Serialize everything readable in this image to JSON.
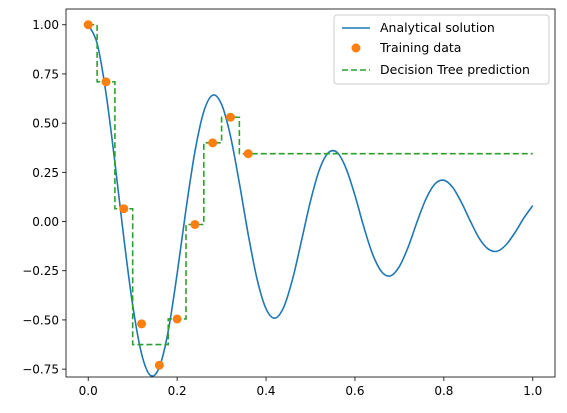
{
  "chart_data": {
    "type": "line",
    "xlim": [
      -0.05,
      1.05
    ],
    "ylim": [
      -0.79,
      1.08
    ],
    "x_ticks": [
      0.0,
      0.2,
      0.4,
      0.6,
      0.8,
      1.0
    ],
    "x_tick_labels": [
      "0.0",
      "0.2",
      "0.4",
      "0.6",
      "0.8",
      "1.0"
    ],
    "y_ticks": [
      -0.75,
      -0.5,
      -0.25,
      0.0,
      0.25,
      0.5,
      0.75,
      1.0
    ],
    "y_tick_labels": [
      "−0.75",
      "−0.50",
      "−0.25",
      "0.00",
      "0.25",
      "0.50",
      "0.75",
      "1.00"
    ],
    "grid": false,
    "legend_position": "top-right",
    "series": [
      {
        "name": "Analytical solution",
        "kind": "line",
        "style": "solid",
        "color": "#1f77b4",
        "x": [
          0.0,
          0.02,
          0.04,
          0.06,
          0.08,
          0.1,
          0.12,
          0.14,
          0.16,
          0.18,
          0.2,
          0.22,
          0.24,
          0.26,
          0.28,
          0.3,
          0.32,
          0.34,
          0.36,
          0.38,
          0.4,
          0.42,
          0.44,
          0.46,
          0.48,
          0.5,
          0.52,
          0.54,
          0.56,
          0.58,
          0.6,
          0.62,
          0.64,
          0.66,
          0.68,
          0.7,
          0.72,
          0.74,
          0.76,
          0.78,
          0.8,
          0.82,
          0.84,
          0.86,
          0.88,
          0.9,
          0.92,
          0.94,
          0.96,
          0.98,
          1.0
        ],
        "y": [
          1.0,
          0.905,
          0.652,
          0.3,
          -0.082,
          -0.425,
          -0.672,
          -0.782,
          -0.74,
          -0.556,
          -0.265,
          0.063,
          0.355,
          0.559,
          0.642,
          0.595,
          0.434,
          0.195,
          -0.067,
          -0.294,
          -0.443,
          -0.491,
          -0.434,
          -0.29,
          -0.095,
          0.104,
          0.263,
          0.349,
          0.351,
          0.27,
          0.133,
          -0.028,
          -0.168,
          -0.255,
          -0.276,
          -0.228,
          -0.128,
          0.0,
          0.116,
          0.191,
          0.21,
          0.173,
          0.095,
          0.0,
          -0.087,
          -0.14,
          -0.151,
          -0.118,
          -0.056,
          0.018,
          0.081
        ]
      },
      {
        "name": "Training data",
        "kind": "scatter",
        "color": "#ff7f0e",
        "x": [
          0.0,
          0.04,
          0.08,
          0.12,
          0.16,
          0.2,
          0.24,
          0.28,
          0.32,
          0.36
        ],
        "y": [
          1.0,
          0.71,
          0.065,
          -0.52,
          -0.73,
          -0.495,
          -0.015,
          0.4,
          0.53,
          0.345
        ]
      },
      {
        "name": "Decision Tree prediction",
        "kind": "step",
        "style": "dashed",
        "color": "#2ca02c",
        "x": [
          0.0,
          0.02,
          0.02,
          0.06,
          0.06,
          0.1,
          0.1,
          0.18,
          0.18,
          0.22,
          0.22,
          0.26,
          0.26,
          0.3,
          0.3,
          0.34,
          0.34,
          1.0
        ],
        "y": [
          1.0,
          1.0,
          0.71,
          0.71,
          0.065,
          0.065,
          -0.625,
          -0.625,
          -0.495,
          -0.495,
          -0.015,
          -0.015,
          0.4,
          0.4,
          0.53,
          0.53,
          0.345,
          0.345
        ]
      }
    ]
  }
}
